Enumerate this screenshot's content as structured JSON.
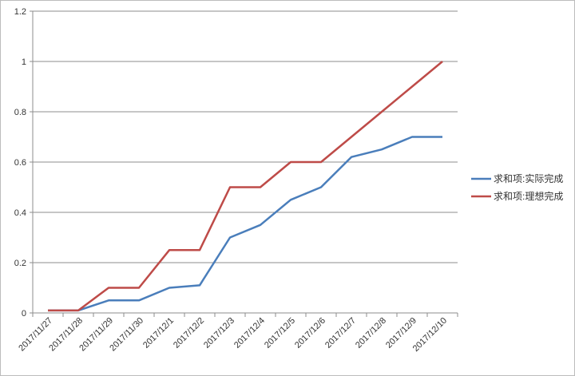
{
  "chart_data": {
    "type": "line",
    "title": "",
    "xlabel": "",
    "ylabel": "",
    "categories": [
      "2017/11/27",
      "2017/11/28",
      "2017/11/29",
      "2017/11/30",
      "2017/12/1",
      "2017/12/2",
      "2017/12/3",
      "2017/12/4",
      "2017/12/5",
      "2017/12/6",
      "2017/12/7",
      "2017/12/8",
      "2017/12/9",
      "2017/12/10"
    ],
    "ylim": [
      0,
      1.2
    ],
    "yticks": [
      "0",
      "0.2",
      "0.4",
      "0.6",
      "0.8",
      "1",
      "1.2"
    ],
    "grid": true,
    "legend_position": "right",
    "series": [
      {
        "name": "求和项:实际完成",
        "color": "#4a7ebb",
        "values": [
          0.01,
          0.01,
          0.05,
          0.05,
          0.1,
          0.11,
          0.3,
          0.35,
          0.45,
          0.5,
          0.62,
          0.65,
          0.7,
          0.7
        ]
      },
      {
        "name": "求和项:理想完成",
        "color": "#be4b48",
        "values": [
          0.01,
          0.01,
          0.1,
          0.1,
          0.25,
          0.25,
          0.5,
          0.5,
          0.6,
          0.6,
          0.7,
          0.8,
          0.9,
          1.0
        ]
      }
    ]
  }
}
